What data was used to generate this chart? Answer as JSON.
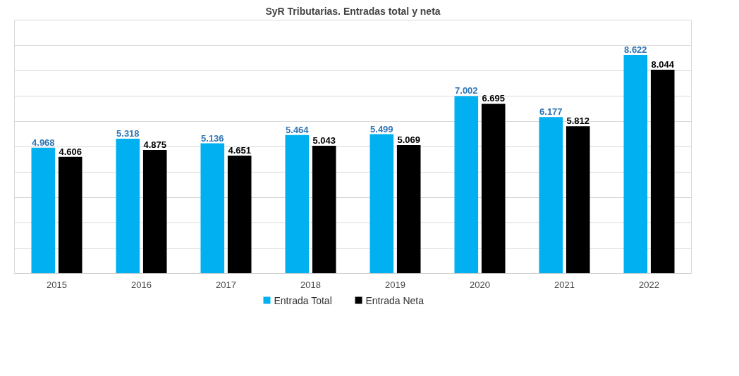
{
  "chart_data": {
    "type": "bar",
    "title": "SyR Tributarias. Entradas total y neta",
    "categories": [
      "2015",
      "2016",
      "2017",
      "2018",
      "2019",
      "2020",
      "2021",
      "2022"
    ],
    "series": [
      {
        "name": "Entrada Total",
        "color": "#00b0f0",
        "values": [
          4968,
          5318,
          5136,
          5464,
          5499,
          7002,
          6177,
          8622
        ],
        "value_labels": [
          "4.968",
          "5.318",
          "5.136",
          "5.464",
          "5.499",
          "7.002",
          "6.177",
          "8.622"
        ]
      },
      {
        "name": "Entrada Neta",
        "color": "#000000",
        "values": [
          4606,
          4875,
          4651,
          5043,
          5069,
          6695,
          5812,
          8044
        ],
        "value_labels": [
          "4.606",
          "4.875",
          "4.651",
          "5.043",
          "5.069",
          "6.695",
          "5.812",
          "8.044"
        ]
      }
    ],
    "ylim": [
      0,
      10000
    ],
    "yticks": [
      {
        "value": 0,
        "label": null
      },
      {
        "value": 1000,
        "label": null
      },
      {
        "value": 2000,
        "label": null
      },
      {
        "value": 3000,
        "label": null
      },
      {
        "value": 4000,
        "label": null
      },
      {
        "value": 5000,
        "label": null
      },
      {
        "value": 6000,
        "label": null
      },
      {
        "value": 7000,
        "label": null
      },
      {
        "value": 8000,
        "label": null
      },
      {
        "value": 9000,
        "label": null
      },
      {
        "value": 10000,
        "label": null
      }
    ],
    "grid": "y",
    "legend": "bottom",
    "tick_labels": "x"
  }
}
